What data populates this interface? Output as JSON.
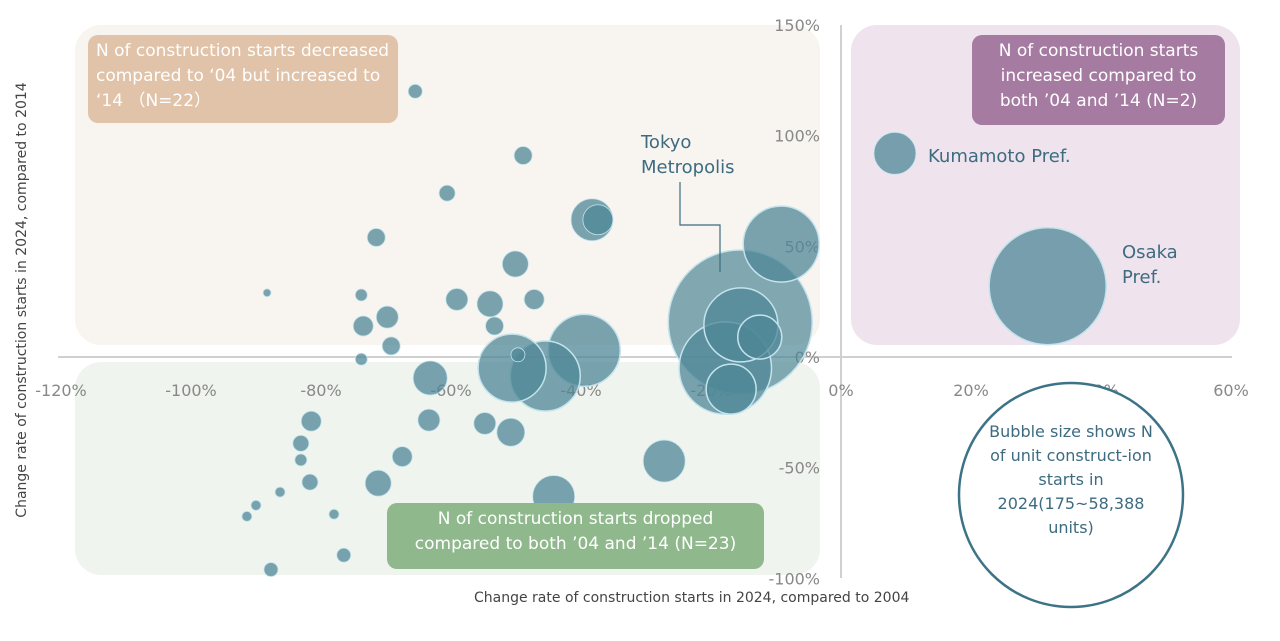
{
  "chart_data": {
    "type": "scatter",
    "xlabel": "Change rate  of construction  starts in 2024, compared to 2004",
    "ylabel": "Change rate  of construction  starts in 2024, compared to 2014",
    "xlim": [
      -120,
      60
    ],
    "ylim": [
      -100,
      150
    ],
    "x_ticks": [
      "-120%",
      "-100%",
      "-80%",
      "-60%",
      "-40%",
      "-20%",
      "0%",
      "20%",
      "40%",
      "60%"
    ],
    "x_tick_values": [
      -120,
      -100,
      -80,
      -60,
      -40,
      -20,
      0,
      20,
      40,
      60
    ],
    "y_ticks": [
      "150%",
      "100%",
      "50%",
      "0%",
      "-50%",
      "-100%"
    ],
    "y_tick_values": [
      150,
      100,
      50,
      0,
      -50,
      -100
    ],
    "grid": false,
    "bubble_color": "#4f8797",
    "size_range_units": [
      175,
      58388
    ],
    "quadrants": {
      "upper_left": {
        "text": "N of construction starts decreased compared to ‘04 but increased to ‘14 （N=22）",
        "color": "#e0c3a8",
        "bg": "#f8f4ef"
      },
      "upper_right": {
        "text": "N of construction starts increased compared to both ’04 and ’14 (N=2)",
        "color": "#a57ba2",
        "bg": "#efe4ee"
      },
      "lower_left": {
        "text": "N of construction starts dropped compared to both ’04 and ’14 (N=23)",
        "color": "#8fb98c",
        "bg": "#f0f4ef"
      }
    },
    "legend_note": "Bubble size shows N of unit construct-ion starts in 2024(175~58,388 units)",
    "annotations": {
      "tokyo": "Tokyo Metropolis",
      "kumamoto": "Kumamoto Pref.",
      "osaka": "Osaka Pref."
    },
    "points": [
      {
        "x": -15.5,
        "y": 15.8,
        "units": 58388,
        "label": "Tokyo Metropolis"
      },
      {
        "x": 31.8,
        "y": 32,
        "units": 38600,
        "label": "Osaka Pref."
      },
      {
        "x": 8.3,
        "y": 92,
        "units": 4967,
        "label": "Kumamoto Pref."
      },
      {
        "x": -17.8,
        "y": -5,
        "units": 24057
      },
      {
        "x": -9.2,
        "y": 51,
        "units": 16264
      },
      {
        "x": -15.4,
        "y": 14.5,
        "units": 15418
      },
      {
        "x": -39.5,
        "y": 3,
        "units": 14596
      },
      {
        "x": -45.5,
        "y": -8.6,
        "units": 13797
      },
      {
        "x": -50.6,
        "y": -5,
        "units": 13020
      },
      {
        "x": -16.9,
        "y": -14.5,
        "units": 7039
      },
      {
        "x": -12.5,
        "y": 9,
        "units": 5451
      },
      {
        "x": -38.3,
        "y": 62,
        "units": 4967
      },
      {
        "x": -37.4,
        "y": 62,
        "units": 2534
      },
      {
        "x": -27.2,
        "y": -47,
        "units": 4967
      },
      {
        "x": -44.2,
        "y": -63,
        "units": 4967
      },
      {
        "x": -63.2,
        "y": -9.5,
        "units": 3257
      },
      {
        "x": -50.8,
        "y": -34,
        "units": 2207
      },
      {
        "x": -50.1,
        "y": 42,
        "units": 1903
      },
      {
        "x": -54.0,
        "y": 24,
        "units": 1903
      },
      {
        "x": -71.2,
        "y": -57,
        "units": 1903
      },
      {
        "x": -59.1,
        "y": 26,
        "units": 1363
      },
      {
        "x": -69.8,
        "y": 18,
        "units": 1363
      },
      {
        "x": -63.4,
        "y": -28.5,
        "units": 1363
      },
      {
        "x": -54.8,
        "y": -30,
        "units": 1363
      },
      {
        "x": -47.2,
        "y": 26,
        "units": 1126
      },
      {
        "x": -73.5,
        "y": 14,
        "units": 1126
      },
      {
        "x": -81.5,
        "y": -29,
        "units": 1126
      },
      {
        "x": -67.5,
        "y": -45,
        "units": 1126
      },
      {
        "x": -48.9,
        "y": 91,
        "units": 912
      },
      {
        "x": -71.5,
        "y": 54,
        "units": 912
      },
      {
        "x": -53.3,
        "y": 14,
        "units": 912
      },
      {
        "x": -69.2,
        "y": 5,
        "units": 912
      },
      {
        "x": -60.6,
        "y": 74,
        "units": 721
      },
      {
        "x": -83.1,
        "y": -39,
        "units": 721
      },
      {
        "x": -81.7,
        "y": -56.5,
        "units": 721
      },
      {
        "x": -65.5,
        "y": 120,
        "units": 551
      },
      {
        "x": -76.5,
        "y": -89.5,
        "units": 551
      },
      {
        "x": -87.7,
        "y": -96,
        "units": 551
      },
      {
        "x": -49.7,
        "y": 1,
        "units": 551
      },
      {
        "x": -73.8,
        "y": 28,
        "units": 405
      },
      {
        "x": -73.8,
        "y": -1,
        "units": 405
      },
      {
        "x": -83.1,
        "y": -46.5,
        "units": 405
      },
      {
        "x": -86.3,
        "y": -61,
        "units": 282
      },
      {
        "x": -90.0,
        "y": -67,
        "units": 282
      },
      {
        "x": -91.4,
        "y": -72,
        "units": 282
      },
      {
        "x": -78.0,
        "y": -71,
        "units": 282
      },
      {
        "x": -88.3,
        "y": 29,
        "units": 175
      }
    ]
  }
}
